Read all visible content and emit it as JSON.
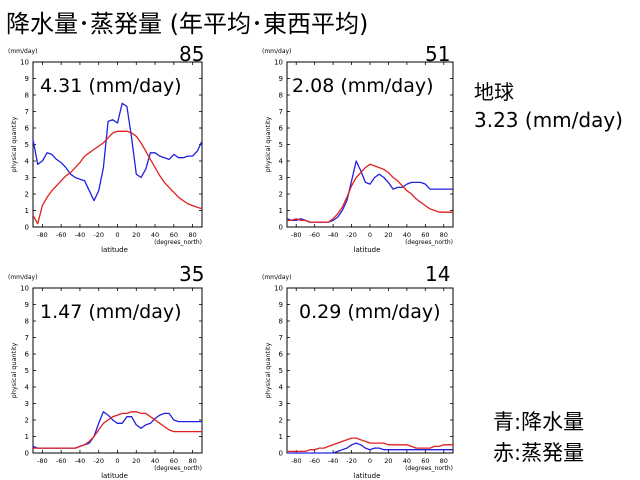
{
  "title": "降水量･蒸発量 (年平均･東西平均)",
  "globe": {
    "label": "地球",
    "value": "3.23 (mm/day)"
  },
  "legend": {
    "blue": "青:降水量",
    "red": "赤:蒸発量"
  },
  "colors": {
    "precipitation": "#2020e0",
    "evaporation": "#e02020"
  },
  "chart_data": [
    {
      "type": "line",
      "count": "85",
      "annotation": "4.31 (mm/day)",
      "unit_label": "(mm/day)",
      "ylabel": "physical quantity",
      "xlabel": "latitude",
      "xunit": "(degrees_north)",
      "xlim": [
        -90,
        90
      ],
      "ylim": [
        0,
        10
      ],
      "xticks": [
        -80,
        -60,
        -40,
        -20,
        0,
        20,
        40,
        60,
        80
      ],
      "yticks": [
        0,
        1,
        2,
        3,
        4,
        5,
        6,
        7,
        8,
        9,
        10
      ],
      "x": [
        -90,
        -85,
        -80,
        -75,
        -70,
        -65,
        -60,
        -55,
        -50,
        -45,
        -40,
        -35,
        -30,
        -25,
        -20,
        -15,
        -10,
        -5,
        0,
        5,
        10,
        15,
        20,
        25,
        30,
        35,
        40,
        45,
        50,
        55,
        60,
        65,
        70,
        75,
        80,
        85,
        90
      ],
      "series": [
        {
          "color": "blue",
          "values": [
            5.3,
            3.8,
            4.0,
            4.5,
            4.4,
            4.1,
            3.9,
            3.6,
            3.2,
            3.0,
            2.9,
            2.8,
            2.2,
            1.6,
            2.2,
            3.6,
            6.4,
            6.5,
            6.3,
            7.5,
            7.3,
            5.4,
            3.2,
            3.0,
            3.5,
            4.5,
            4.5,
            4.3,
            4.2,
            4.1,
            4.4,
            4.2,
            4.2,
            4.3,
            4.3,
            4.6,
            5.2
          ]
        },
        {
          "color": "red",
          "values": [
            0.7,
            0.2,
            1.3,
            1.8,
            2.2,
            2.5,
            2.8,
            3.1,
            3.3,
            3.6,
            3.9,
            4.3,
            4.5,
            4.7,
            4.9,
            5.1,
            5.4,
            5.7,
            5.8,
            5.8,
            5.8,
            5.7,
            5.5,
            5.1,
            4.6,
            4.1,
            3.6,
            3.1,
            2.7,
            2.4,
            2.1,
            1.8,
            1.6,
            1.4,
            1.3,
            1.2,
            1.1
          ]
        }
      ]
    },
    {
      "type": "line",
      "count": "51",
      "annotation": "2.08 (mm/day)",
      "unit_label": "(mm/day)",
      "ylabel": "physical quantity",
      "xlabel": "latitude",
      "xunit": "(degrees_north)",
      "xlim": [
        -90,
        90
      ],
      "ylim": [
        0,
        10
      ],
      "xticks": [
        -80,
        -60,
        -40,
        -20,
        0,
        20,
        40,
        60,
        80
      ],
      "yticks": [
        0,
        1,
        2,
        3,
        4,
        5,
        6,
        7,
        8,
        9,
        10
      ],
      "x": [
        -90,
        -85,
        -80,
        -75,
        -70,
        -65,
        -60,
        -55,
        -50,
        -45,
        -40,
        -35,
        -30,
        -25,
        -20,
        -15,
        -10,
        -5,
        0,
        5,
        10,
        15,
        20,
        25,
        30,
        35,
        40,
        45,
        50,
        55,
        60,
        65,
        70,
        75,
        80,
        85,
        90
      ],
      "series": [
        {
          "color": "blue",
          "values": [
            0.5,
            0.4,
            0.4,
            0.5,
            0.4,
            0.3,
            0.3,
            0.3,
            0.3,
            0.3,
            0.4,
            0.6,
            1.0,
            1.6,
            2.8,
            4.0,
            3.4,
            2.7,
            2.6,
            3.0,
            3.2,
            3.0,
            2.7,
            2.3,
            2.4,
            2.4,
            2.6,
            2.7,
            2.7,
            2.7,
            2.6,
            2.3,
            2.3,
            2.3,
            2.3,
            2.3,
            2.3
          ]
        },
        {
          "color": "red",
          "values": [
            0.4,
            0.4,
            0.5,
            0.4,
            0.4,
            0.3,
            0.3,
            0.3,
            0.3,
            0.3,
            0.5,
            0.8,
            1.2,
            1.8,
            2.5,
            3.0,
            3.3,
            3.6,
            3.8,
            3.7,
            3.6,
            3.5,
            3.3,
            3.0,
            2.8,
            2.5,
            2.2,
            2.0,
            1.7,
            1.5,
            1.3,
            1.1,
            1.0,
            0.9,
            0.9,
            0.9,
            0.9
          ]
        }
      ]
    },
    {
      "type": "line",
      "count": "35",
      "annotation": "1.47 (mm/day)",
      "unit_label": "(mm/day)",
      "ylabel": "physical quantity",
      "xlabel": "latitude",
      "xunit": "(degrees_north)",
      "xlim": [
        -90,
        90
      ],
      "ylim": [
        0,
        10
      ],
      "xticks": [
        -80,
        -60,
        -40,
        -20,
        0,
        20,
        40,
        60,
        80
      ],
      "yticks": [
        0,
        1,
        2,
        3,
        4,
        5,
        6,
        7,
        8,
        9,
        10
      ],
      "x": [
        -90,
        -85,
        -80,
        -75,
        -70,
        -65,
        -60,
        -55,
        -50,
        -45,
        -40,
        -35,
        -30,
        -25,
        -20,
        -15,
        -10,
        -5,
        0,
        5,
        10,
        15,
        20,
        25,
        30,
        35,
        40,
        45,
        50,
        55,
        60,
        65,
        70,
        75,
        80,
        85,
        90
      ],
      "series": [
        {
          "color": "blue",
          "values": [
            0.4,
            0.3,
            0.3,
            0.3,
            0.3,
            0.3,
            0.3,
            0.3,
            0.3,
            0.3,
            0.4,
            0.5,
            0.6,
            1.0,
            1.8,
            2.5,
            2.3,
            2.0,
            1.8,
            1.8,
            2.2,
            2.2,
            1.7,
            1.5,
            1.7,
            1.8,
            2.1,
            2.3,
            2.4,
            2.4,
            2.0,
            1.9,
            1.9,
            1.9,
            1.9,
            1.9,
            1.9
          ]
        },
        {
          "color": "red",
          "values": [
            0.3,
            0.3,
            0.3,
            0.3,
            0.3,
            0.3,
            0.3,
            0.3,
            0.3,
            0.3,
            0.4,
            0.5,
            0.7,
            1.0,
            1.4,
            1.8,
            2.0,
            2.2,
            2.3,
            2.4,
            2.4,
            2.5,
            2.5,
            2.4,
            2.4,
            2.2,
            2.0,
            1.8,
            1.6,
            1.4,
            1.3,
            1.3,
            1.3,
            1.3,
            1.3,
            1.3,
            1.3
          ]
        }
      ]
    },
    {
      "type": "line",
      "count": "14",
      "annotation": "0.29 (mm/day)",
      "unit_label": "(mm/day)",
      "ylabel": "physical quantity",
      "xlabel": "latitude",
      "xunit": "(degrees_north)",
      "xlim": [
        -90,
        90
      ],
      "ylim": [
        0,
        10
      ],
      "xticks": [
        -80,
        -60,
        -40,
        -20,
        0,
        20,
        40,
        60,
        80
      ],
      "yticks": [
        0,
        1,
        2,
        3,
        4,
        5,
        6,
        7,
        8,
        9,
        10
      ],
      "x": [
        -90,
        -85,
        -80,
        -75,
        -70,
        -65,
        -60,
        -55,
        -50,
        -45,
        -40,
        -35,
        -30,
        -25,
        -20,
        -15,
        -10,
        -5,
        0,
        5,
        10,
        15,
        20,
        25,
        30,
        35,
        40,
        45,
        50,
        55,
        60,
        65,
        70,
        75,
        80,
        85,
        90
      ],
      "series": [
        {
          "color": "blue",
          "values": [
            0.0,
            0.0,
            0.0,
            0.0,
            0.0,
            0.0,
            0.0,
            0.0,
            0.0,
            0.0,
            0.0,
            0.1,
            0.2,
            0.3,
            0.5,
            0.6,
            0.5,
            0.3,
            0.2,
            0.3,
            0.3,
            0.2,
            0.2,
            0.2,
            0.2,
            0.2,
            0.2,
            0.2,
            0.2,
            0.2,
            0.2,
            0.2,
            0.2,
            0.2,
            0.2,
            0.2,
            0.2
          ]
        },
        {
          "color": "red",
          "values": [
            0.1,
            0.1,
            0.1,
            0.1,
            0.1,
            0.2,
            0.2,
            0.3,
            0.3,
            0.4,
            0.5,
            0.6,
            0.7,
            0.8,
            0.9,
            0.9,
            0.8,
            0.7,
            0.6,
            0.6,
            0.6,
            0.6,
            0.5,
            0.5,
            0.5,
            0.5,
            0.5,
            0.4,
            0.3,
            0.3,
            0.3,
            0.3,
            0.4,
            0.4,
            0.5,
            0.5,
            0.5
          ]
        }
      ]
    }
  ]
}
